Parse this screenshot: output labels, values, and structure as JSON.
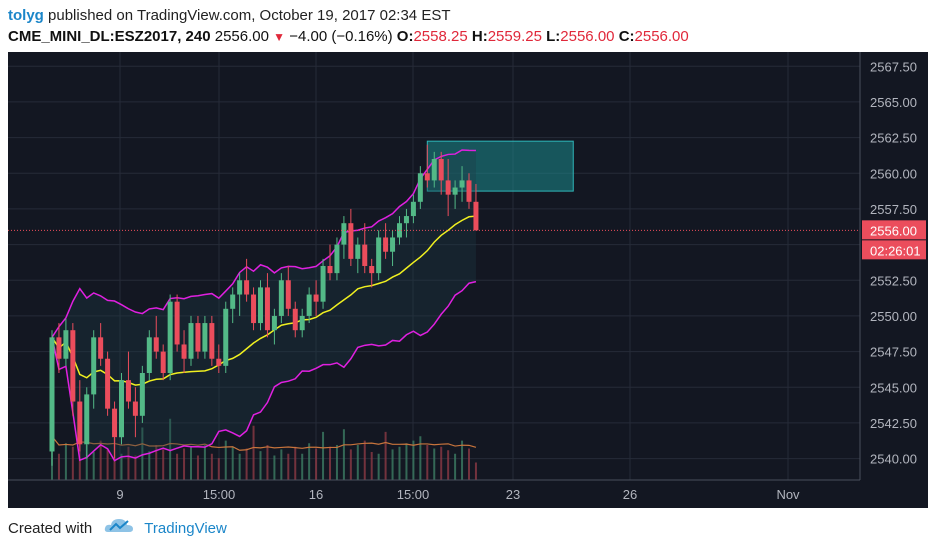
{
  "header": {
    "user": "tolyg",
    "published_text": " published on TradingView.com, October 19, 2017 02:34 EST",
    "symbol": "CME_MINI_DL:ESZ2017, 240",
    "last_price": "2556.00",
    "change": "−4.00 (−0.16%)",
    "open_label": "O:",
    "open": "2558.25",
    "high_label": "H:",
    "high": "2559.25",
    "low_label": "L:",
    "low": "2556.00",
    "close_label": "C:",
    "close": "2556.00"
  },
  "footer": {
    "created_with": "Created with",
    "brand": "TradingView"
  },
  "colors": {
    "background": "#131722",
    "up": "#53b987",
    "down": "#eb4d5c",
    "bollinger": "#e020e0",
    "ma": "#f0f020",
    "volume_ma": "#c8743c",
    "box": "#1b8a8c",
    "price_line": "#eb4d5c"
  },
  "chart_data": {
    "type": "candlestick",
    "timeframe": "240",
    "ylim": [
      2538.5,
      2568.5
    ],
    "y_ticks": [
      "2567.50",
      "2565.00",
      "2562.50",
      "2560.00",
      "2557.50",
      "2555.00",
      "2552.50",
      "2550.00",
      "2547.50",
      "2545.00",
      "2542.50",
      "2540.00"
    ],
    "x_ticks": [
      "9",
      "15:00",
      "16",
      "15:00",
      "23",
      "26",
      "Nov"
    ],
    "last_price_label": "2556.00",
    "countdown_label": "02:26:01",
    "candles": [
      [
        2540.5,
        2549,
        2539.5,
        2548.5
      ],
      [
        2548.5,
        2549.5,
        2546,
        2547
      ],
      [
        2547,
        2549.8,
        2546.5,
        2549
      ],
      [
        2549,
        2549.5,
        2543,
        2544
      ],
      [
        2544,
        2545.5,
        2540.5,
        2541
      ],
      [
        2541,
        2545,
        2540,
        2544.5
      ],
      [
        2544.5,
        2549,
        2543.5,
        2548.5
      ],
      [
        2548.5,
        2549.5,
        2546.5,
        2547
      ],
      [
        2547,
        2547.5,
        2543,
        2543.5
      ],
      [
        2543.5,
        2544,
        2540,
        2541.5
      ],
      [
        2541.5,
        2546,
        2541,
        2545.5
      ],
      [
        2545.5,
        2547.5,
        2543.5,
        2544
      ],
      [
        2544,
        2545,
        2541.5,
        2543
      ],
      [
        2543,
        2546.5,
        2542.5,
        2546
      ],
      [
        2546,
        2549,
        2545.5,
        2548.5
      ],
      [
        2548.5,
        2550,
        2547,
        2547.5
      ],
      [
        2547.5,
        2548,
        2545.5,
        2546
      ],
      [
        2546,
        2551.5,
        2545.5,
        2551
      ],
      [
        2551,
        2551.5,
        2547.5,
        2548
      ],
      [
        2548,
        2549,
        2546,
        2547
      ],
      [
        2547,
        2550,
        2546.5,
        2549.5
      ],
      [
        2549.5,
        2550,
        2547,
        2547.5
      ],
      [
        2547.5,
        2550,
        2547,
        2549.5
      ],
      [
        2549.5,
        2550,
        2546.5,
        2547
      ],
      [
        2547,
        2548,
        2546,
        2546.5
      ],
      [
        2546.5,
        2551,
        2546,
        2550.5
      ],
      [
        2550.5,
        2552,
        2549.5,
        2551.5
      ],
      [
        2551.5,
        2553,
        2550,
        2552.5
      ],
      [
        2552.5,
        2554,
        2551,
        2551.5
      ],
      [
        2551.5,
        2552,
        2549,
        2549.5
      ],
      [
        2549.5,
        2552.5,
        2549,
        2552
      ],
      [
        2552,
        2553,
        2548.5,
        2549
      ],
      [
        2549,
        2550.5,
        2548,
        2550
      ],
      [
        2550,
        2553,
        2549.5,
        2552.5
      ],
      [
        2552.5,
        2553.5,
        2550,
        2550.5
      ],
      [
        2550.5,
        2551,
        2548.5,
        2549
      ],
      [
        2549,
        2550.5,
        2548.5,
        2550
      ],
      [
        2550,
        2552,
        2549.5,
        2551.5
      ],
      [
        2551.5,
        2552.5,
        2550,
        2551
      ],
      [
        2551,
        2554,
        2550.5,
        2553.5
      ],
      [
        2553.5,
        2555,
        2552.5,
        2553
      ],
      [
        2553,
        2555.5,
        2552.5,
        2555
      ],
      [
        2555,
        2557,
        2554,
        2556.5
      ],
      [
        2556.5,
        2557.5,
        2553.5,
        2554
      ],
      [
        2554,
        2555.5,
        2553,
        2555
      ],
      [
        2555,
        2556.5,
        2553,
        2553.5
      ],
      [
        2553.5,
        2554,
        2552,
        2553
      ],
      [
        2553,
        2556,
        2552.5,
        2555.5
      ],
      [
        2555.5,
        2556.5,
        2554,
        2554.5
      ],
      [
        2554.5,
        2556,
        2553.5,
        2555.5
      ],
      [
        2555.5,
        2557,
        2555,
        2556.5
      ],
      [
        2556.5,
        2557.5,
        2555.5,
        2557
      ],
      [
        2557,
        2558.5,
        2556.5,
        2558
      ],
      [
        2558,
        2560.5,
        2557.5,
        2560
      ],
      [
        2560,
        2562,
        2559,
        2559.5
      ],
      [
        2559.5,
        2561.5,
        2559,
        2561
      ],
      [
        2561,
        2561.5,
        2558.5,
        2559.5
      ],
      [
        2559.5,
        2561,
        2557,
        2558.5
      ],
      [
        2558.5,
        2559.5,
        2557.5,
        2559
      ],
      [
        2559,
        2560.5,
        2558,
        2559.5
      ],
      [
        2559.5,
        2560,
        2557.5,
        2558
      ],
      [
        2558,
        2559.25,
        2556,
        2556
      ]
    ],
    "volume": [
      50,
      30,
      42,
      38,
      58,
      40,
      32,
      45,
      35,
      48,
      30,
      38,
      28,
      60,
      33,
      40,
      35,
      70,
      30,
      36,
      38,
      28,
      40,
      30,
      25,
      45,
      38,
      30,
      36,
      62,
      33,
      40,
      28,
      35,
      30,
      38,
      30,
      42,
      36,
      55,
      38,
      40,
      58,
      35,
      40,
      45,
      32,
      30,
      55,
      35,
      38,
      42,
      45,
      50,
      40,
      36,
      38,
      34,
      30,
      45,
      36,
      20
    ],
    "box": {
      "x_start_bar": 54,
      "x_end_bar": 75,
      "y_top": 2562.25,
      "y_bottom": 2558.75
    }
  }
}
